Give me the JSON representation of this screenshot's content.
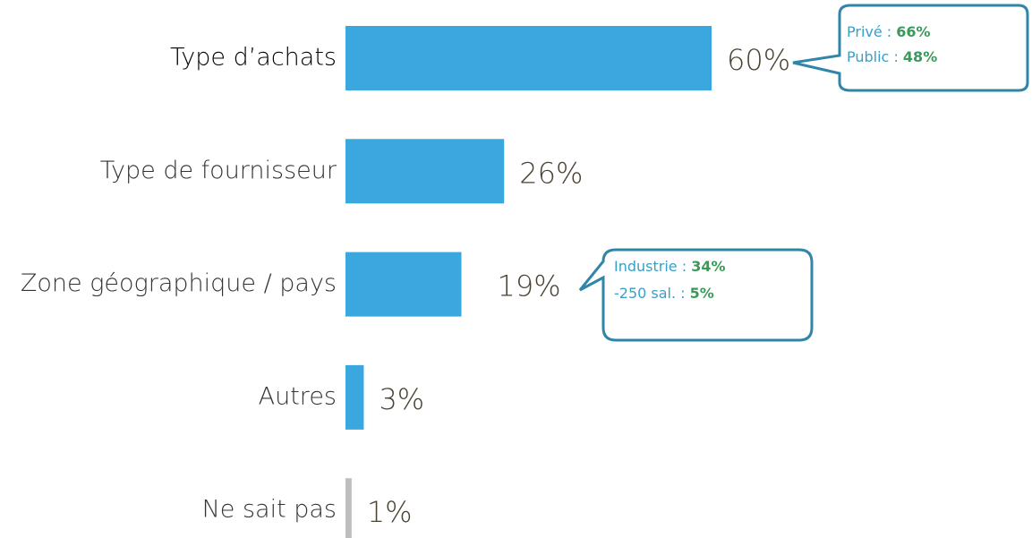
{
  "chart_data": {
    "type": "bar",
    "orientation": "horizontal",
    "categories": [
      "Type d’achats",
      "Type de fournisseur",
      "Zone géographique / pays",
      "Autres",
      "Ne sait pas"
    ],
    "values": [
      60,
      26,
      19,
      3,
      1
    ],
    "value_labels": [
      "60%",
      "26%",
      "19%",
      "3%",
      "1%"
    ],
    "colors": [
      "#3aa7de",
      "#3aa7de",
      "#3aa7de",
      "#3aa7de",
      "#bdbdbd"
    ],
    "callouts": [
      {
        "lines": [
          {
            "label": "Privé :",
            "value_label": "66%"
          },
          {
            "label": "Public :",
            "value_label": "48%"
          }
        ]
      },
      {
        "lines": [
          {
            "label": "Industrie :",
            "value_label": "34%"
          },
          {
            "label": "-250 sal. :",
            "value_label": "5%"
          }
        ]
      }
    ]
  }
}
